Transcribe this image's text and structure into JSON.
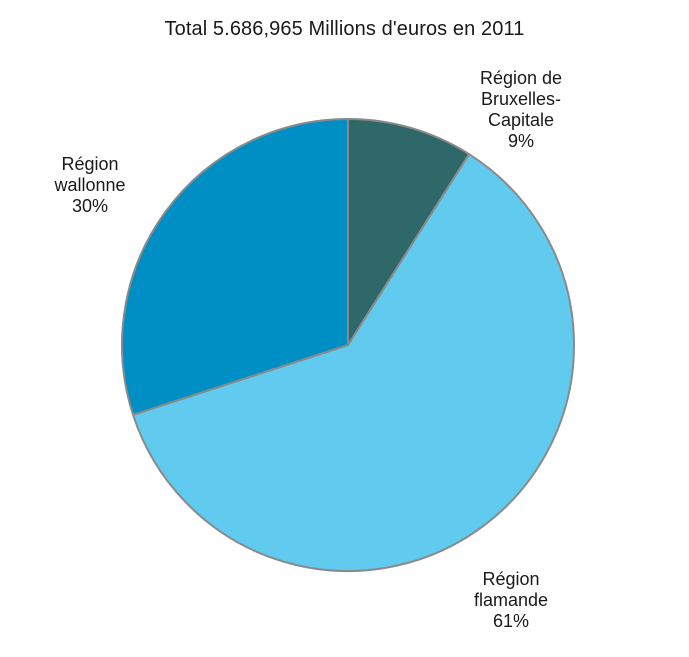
{
  "chart_data": {
    "type": "pie",
    "title": "Total 5.686,965 Millions d'euros en 2011",
    "slices": [
      {
        "label_lines": [
          "Région de",
          "Bruxelles-",
          "Capitale"
        ],
        "value": 9,
        "value_label": "9%",
        "color": "#2f6868"
      },
      {
        "label_lines": [
          "Région",
          "flamande"
        ],
        "value": 61,
        "value_label": "61%",
        "color": "#61cbef"
      },
      {
        "label_lines": [
          "Région",
          "wallonne"
        ],
        "value": 30,
        "value_label": "30%",
        "color": "#008fc5"
      }
    ],
    "start_angle_deg": 0,
    "direction": "clockwise",
    "legend": "none",
    "stroke_color": "#8a8a8a"
  }
}
